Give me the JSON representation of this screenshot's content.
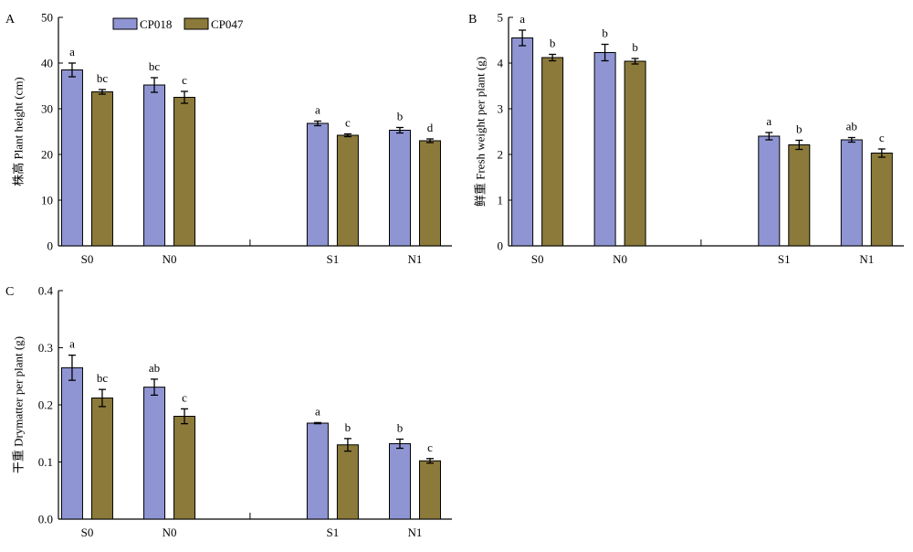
{
  "colors": {
    "CP018": "#8f95d3",
    "CP047": "#8c7a3a",
    "axis": "#000000"
  },
  "legend": {
    "entries": [
      "CP018",
      "CP047"
    ]
  },
  "chart_data": [
    {
      "type": "bar",
      "panel_label": "A",
      "ylabel": "株高 Plant height (cm)",
      "ylim": [
        0,
        50
      ],
      "yticks": [
        0,
        10,
        20,
        30,
        40,
        50
      ],
      "categories": [
        "S0",
        "N0",
        "S1",
        "N1"
      ],
      "series": [
        {
          "name": "CP018",
          "values": [
            38.5,
            35.2,
            26.8,
            25.3
          ],
          "errors": [
            1.5,
            1.6,
            0.5,
            0.6
          ],
          "letters": [
            "a",
            "bc",
            "a",
            "b"
          ]
        },
        {
          "name": "CP047",
          "values": [
            33.7,
            32.5,
            24.2,
            23.0
          ],
          "errors": [
            0.5,
            1.3,
            0.3,
            0.4
          ],
          "letters": [
            "bc",
            "c",
            "c",
            "d"
          ]
        }
      ]
    },
    {
      "type": "bar",
      "panel_label": "B",
      "ylabel": "鲜重 Fresh weight per plant (g)",
      "ylim": [
        0,
        5
      ],
      "yticks": [
        0,
        1,
        2,
        3,
        4,
        5
      ],
      "categories": [
        "S0",
        "N0",
        "S1",
        "N1"
      ],
      "series": [
        {
          "name": "CP018",
          "values": [
            4.55,
            4.23,
            2.4,
            2.32
          ],
          "errors": [
            0.17,
            0.18,
            0.08,
            0.05
          ],
          "letters": [
            "a",
            "b",
            "a",
            "ab"
          ]
        },
        {
          "name": "CP047",
          "values": [
            4.12,
            4.04,
            2.21,
            2.03
          ],
          "errors": [
            0.07,
            0.06,
            0.1,
            0.09
          ],
          "letters": [
            "b",
            "b",
            "b",
            "c"
          ]
        }
      ]
    },
    {
      "type": "bar",
      "panel_label": "C",
      "ylabel": "干重 Drymatter per plant (g)",
      "ylim": [
        0,
        0.4
      ],
      "yticks": [
        0,
        0.1,
        0.2,
        0.3,
        0.4
      ],
      "categories": [
        "S0",
        "N0",
        "S1",
        "N1"
      ],
      "series": [
        {
          "name": "CP018",
          "values": [
            0.265,
            0.231,
            0.168,
            0.132
          ],
          "errors": [
            0.022,
            0.014,
            0.001,
            0.008
          ],
          "letters": [
            "a",
            "ab",
            "a",
            "b"
          ]
        },
        {
          "name": "CP047",
          "values": [
            0.212,
            0.18,
            0.13,
            0.102
          ],
          "errors": [
            0.015,
            0.013,
            0.011,
            0.004
          ],
          "letters": [
            "bc",
            "c",
            "b",
            "c"
          ]
        }
      ]
    }
  ]
}
